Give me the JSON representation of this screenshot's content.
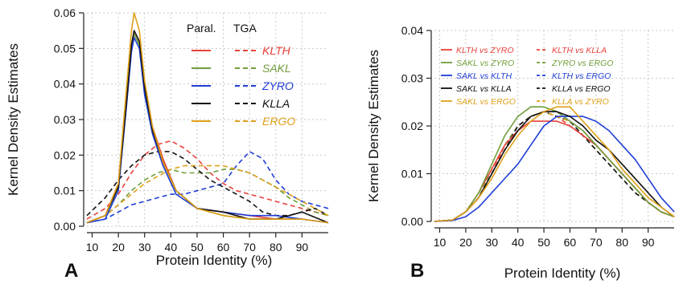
{
  "chart_data": [
    {
      "type": "line",
      "panel_label": "A",
      "xlabel": "Protein Identity (%)",
      "ylabel": "Kernel Density Estimates",
      "xlim": [
        8,
        100
      ],
      "ylim": [
        0,
        0.06
      ],
      "x_ticks": [
        "10",
        "20",
        "30",
        "40",
        "50",
        "60",
        "70",
        "80",
        "90"
      ],
      "y_ticks": [
        "0.00",
        "0.01",
        "0.02",
        "0.03",
        "0.04",
        "0.05",
        "0.06"
      ],
      "grid": true,
      "legend_position": "top-right",
      "legend_headers": [
        "Paral.",
        "TGA"
      ],
      "series": [
        {
          "name": "KLTH",
          "color": "#e8413a",
          "dash": "solid",
          "x": [
            8,
            15,
            20,
            23,
            25,
            26,
            28,
            30,
            33,
            37,
            42,
            50,
            60,
            70,
            80,
            90,
            100
          ],
          "y": [
            0.001,
            0.003,
            0.012,
            0.035,
            0.05,
            0.055,
            0.052,
            0.039,
            0.028,
            0.019,
            0.01,
            0.005,
            0.004,
            0.003,
            0.002,
            0.002,
            0.001
          ]
        },
        {
          "name": "SAKL",
          "color": "#6f9e3a",
          "dash": "solid",
          "x": [
            8,
            15,
            20,
            23,
            25,
            26,
            28,
            30,
            33,
            37,
            42,
            50,
            60,
            70,
            80,
            90,
            100
          ],
          "y": [
            0.001,
            0.003,
            0.011,
            0.034,
            0.05,
            0.054,
            0.051,
            0.038,
            0.027,
            0.018,
            0.01,
            0.005,
            0.003,
            0.002,
            0.002,
            0.002,
            0.001
          ]
        },
        {
          "name": "ZYRO",
          "color": "#1f3ed6",
          "dash": "solid",
          "x": [
            8,
            15,
            20,
            23,
            25,
            26,
            28,
            30,
            33,
            37,
            42,
            50,
            60,
            70,
            80,
            90,
            100
          ],
          "y": [
            0.001,
            0.002,
            0.01,
            0.033,
            0.049,
            0.053,
            0.05,
            0.037,
            0.026,
            0.017,
            0.009,
            0.005,
            0.004,
            0.003,
            0.003,
            0.002,
            0.001
          ]
        },
        {
          "name": "KLLA",
          "color": "#111111",
          "dash": "solid",
          "x": [
            8,
            15,
            20,
            23,
            25,
            26,
            28,
            30,
            33,
            37,
            42,
            50,
            60,
            70,
            80,
            90,
            100
          ],
          "y": [
            0.001,
            0.003,
            0.011,
            0.034,
            0.051,
            0.055,
            0.052,
            0.039,
            0.027,
            0.018,
            0.01,
            0.005,
            0.004,
            0.002,
            0.002,
            0.004,
            0.001
          ]
        },
        {
          "name": "ERGO",
          "color": "#e0a01a",
          "dash": "solid",
          "x": [
            8,
            15,
            20,
            23,
            25,
            26,
            28,
            30,
            33,
            37,
            42,
            50,
            60,
            70,
            80,
            90,
            100
          ],
          "y": [
            0.001,
            0.003,
            0.012,
            0.038,
            0.055,
            0.06,
            0.055,
            0.041,
            0.028,
            0.018,
            0.01,
            0.005,
            0.003,
            0.002,
            0.002,
            0.002,
            0.001
          ]
        },
        {
          "name": "KLTH",
          "color": "#e8413a",
          "dash": "dashed",
          "x": [
            8,
            15,
            20,
            25,
            30,
            35,
            40,
            45,
            50,
            55,
            60,
            65,
            70,
            75,
            80,
            85,
            90,
            95,
            100
          ],
          "y": [
            0.002,
            0.005,
            0.009,
            0.015,
            0.02,
            0.023,
            0.024,
            0.022,
            0.019,
            0.015,
            0.012,
            0.01,
            0.009,
            0.008,
            0.007,
            0.006,
            0.005,
            0.004,
            0.003
          ]
        },
        {
          "name": "SAKL",
          "color": "#6f9e3a",
          "dash": "dashed",
          "x": [
            8,
            15,
            20,
            25,
            30,
            35,
            40,
            45,
            50,
            55,
            60,
            65,
            70,
            75,
            80,
            85,
            90,
            95,
            100
          ],
          "y": [
            0.001,
            0.003,
            0.006,
            0.01,
            0.013,
            0.015,
            0.016,
            0.015,
            0.015,
            0.015,
            0.016,
            0.016,
            0.015,
            0.013,
            0.011,
            0.008,
            0.006,
            0.004,
            0.003
          ]
        },
        {
          "name": "ZYRO",
          "color": "#1f3ed6",
          "dash": "dashed",
          "x": [
            8,
            15,
            20,
            25,
            30,
            35,
            40,
            45,
            50,
            55,
            60,
            65,
            70,
            75,
            80,
            85,
            90,
            95,
            100
          ],
          "y": [
            0.001,
            0.002,
            0.004,
            0.006,
            0.007,
            0.008,
            0.009,
            0.009,
            0.01,
            0.011,
            0.012,
            0.017,
            0.021,
            0.019,
            0.013,
            0.009,
            0.007,
            0.006,
            0.005
          ]
        },
        {
          "name": "KLLA",
          "color": "#111111",
          "dash": "dashed",
          "x": [
            8,
            15,
            20,
            25,
            30,
            35,
            40,
            45,
            50,
            55,
            60,
            65,
            70,
            75,
            80,
            85,
            90,
            95,
            100
          ],
          "y": [
            0.003,
            0.008,
            0.013,
            0.017,
            0.02,
            0.021,
            0.021,
            0.019,
            0.016,
            0.013,
            0.011,
            0.009,
            0.007,
            0.004,
            0.003,
            0.003,
            0.004,
            0.005,
            0.003
          ]
        },
        {
          "name": "ERGO",
          "color": "#e0a01a",
          "dash": "dashed",
          "x": [
            8,
            15,
            20,
            25,
            30,
            35,
            40,
            45,
            50,
            55,
            60,
            65,
            70,
            75,
            80,
            85,
            90,
            95,
            100
          ],
          "y": [
            0.001,
            0.003,
            0.006,
            0.009,
            0.012,
            0.014,
            0.016,
            0.017,
            0.017,
            0.017,
            0.017,
            0.016,
            0.015,
            0.013,
            0.011,
            0.009,
            0.007,
            0.005,
            0.003
          ]
        }
      ]
    },
    {
      "type": "line",
      "panel_label": "B",
      "xlabel": "Protein Identity (%)",
      "ylabel": "Kernel Density Estimates",
      "xlim": [
        8,
        100
      ],
      "ylim": [
        0,
        0.04
      ],
      "x_ticks": [
        "10",
        "20",
        "30",
        "40",
        "50",
        "60",
        "70",
        "80",
        "90"
      ],
      "y_ticks": [
        "0.00",
        "0.01",
        "0.02",
        "0.03",
        "0.04"
      ],
      "grid": true,
      "legend_position": "top",
      "series": [
        {
          "name": "KLTH vs ZYRO",
          "color": "#e8413a",
          "dash": "solid",
          "x": [
            8,
            15,
            20,
            25,
            30,
            35,
            40,
            45,
            50,
            55,
            60,
            65,
            70,
            75,
            80,
            85,
            90,
            95,
            100
          ],
          "y": [
            0,
            0.0003,
            0.002,
            0.006,
            0.011,
            0.016,
            0.019,
            0.021,
            0.021,
            0.021,
            0.02,
            0.018,
            0.016,
            0.013,
            0.01,
            0.007,
            0.004,
            0.002,
            0.001
          ]
        },
        {
          "name": "SAKL vs ZYRO",
          "color": "#6f9e3a",
          "dash": "solid",
          "x": [
            8,
            15,
            20,
            25,
            30,
            35,
            40,
            45,
            50,
            55,
            60,
            65,
            70,
            75,
            80,
            85,
            90,
            95,
            100
          ],
          "y": [
            0,
            0.0003,
            0.002,
            0.006,
            0.012,
            0.018,
            0.022,
            0.024,
            0.024,
            0.023,
            0.021,
            0.019,
            0.016,
            0.013,
            0.01,
            0.007,
            0.004,
            0.002,
            0.001
          ]
        },
        {
          "name": "SAKL vs KLTH",
          "color": "#1f3ed6",
          "dash": "solid",
          "x": [
            8,
            15,
            20,
            25,
            30,
            35,
            40,
            45,
            50,
            55,
            60,
            65,
            70,
            75,
            80,
            85,
            90,
            95,
            100
          ],
          "y": [
            0,
            0.0002,
            0.001,
            0.003,
            0.006,
            0.009,
            0.012,
            0.016,
            0.02,
            0.022,
            0.022,
            0.022,
            0.021,
            0.019,
            0.016,
            0.013,
            0.009,
            0.005,
            0.002
          ]
        },
        {
          "name": "SAKL vs KLLA",
          "color": "#111111",
          "dash": "solid",
          "x": [
            8,
            15,
            20,
            25,
            30,
            35,
            40,
            45,
            50,
            55,
            60,
            65,
            70,
            75,
            80,
            85,
            90,
            95,
            100
          ],
          "y": [
            0,
            0.0003,
            0.002,
            0.005,
            0.01,
            0.015,
            0.019,
            0.022,
            0.023,
            0.023,
            0.022,
            0.02,
            0.017,
            0.015,
            0.012,
            0.009,
            0.006,
            0.003,
            0.001
          ]
        },
        {
          "name": "SAKL vs ERGO",
          "color": "#e0a01a",
          "dash": "solid",
          "x": [
            8,
            15,
            20,
            25,
            30,
            35,
            40,
            45,
            50,
            55,
            60,
            65,
            70,
            75,
            80,
            85,
            90,
            95,
            100
          ],
          "y": [
            0,
            0.0003,
            0.002,
            0.005,
            0.009,
            0.014,
            0.018,
            0.021,
            0.023,
            0.024,
            0.024,
            0.021,
            0.018,
            0.015,
            0.011,
            0.008,
            0.005,
            0.003,
            0.001
          ]
        },
        {
          "name": "KLTH vs KLLA",
          "color": "#e8413a",
          "dash": "dashed",
          "x": [
            8,
            15,
            20,
            25,
            30,
            35,
            40,
            45,
            50,
            55,
            60,
            65,
            70,
            75,
            80,
            85,
            90,
            95,
            100
          ],
          "y": [
            0,
            0.0003,
            0.002,
            0.005,
            0.01,
            0.016,
            0.02,
            0.022,
            0.023,
            0.022,
            0.02,
            0.018,
            0.016,
            0.013,
            0.01,
            0.007,
            0.004,
            0.002,
            0.001
          ]
        },
        {
          "name": "ZYRO vs ERGO",
          "color": "#6f9e3a",
          "dash": "dashed",
          "x": [
            8,
            15,
            20,
            25,
            30,
            35,
            40,
            45,
            50,
            55,
            60,
            65,
            70,
            75,
            80,
            85,
            90,
            95,
            100
          ],
          "y": [
            0,
            0.0003,
            0.002,
            0.005,
            0.011,
            0.016,
            0.02,
            0.022,
            0.023,
            0.022,
            0.021,
            0.018,
            0.015,
            0.012,
            0.009,
            0.006,
            0.004,
            0.002,
            0.001
          ]
        },
        {
          "name": "KLTH vs ERGO",
          "color": "#1f3ed6",
          "dash": "dashed",
          "x": [
            8,
            15,
            20,
            25,
            30,
            35,
            40,
            45,
            50,
            55,
            60,
            65,
            70,
            75,
            80,
            85,
            90,
            95,
            100
          ],
          "y": [
            0,
            0.0003,
            0.002,
            0.005,
            0.01,
            0.015,
            0.019,
            0.022,
            0.023,
            0.023,
            0.021,
            0.019,
            0.016,
            0.013,
            0.01,
            0.007,
            0.004,
            0.002,
            0.001
          ]
        },
        {
          "name": "KLLA vs ERGO",
          "color": "#111111",
          "dash": "dashed",
          "x": [
            8,
            15,
            20,
            25,
            30,
            35,
            40,
            45,
            50,
            55,
            60,
            65,
            70,
            75,
            80,
            85,
            90,
            95,
            100
          ],
          "y": [
            0,
            0.0003,
            0.002,
            0.005,
            0.01,
            0.015,
            0.02,
            0.022,
            0.023,
            0.022,
            0.021,
            0.018,
            0.015,
            0.012,
            0.009,
            0.006,
            0.004,
            0.002,
            0.001
          ]
        },
        {
          "name": "KLLA vs ZYRO",
          "color": "#e0a01a",
          "dash": "dashed",
          "x": [
            8,
            15,
            20,
            25,
            30,
            35,
            40,
            45,
            50,
            55,
            60,
            65,
            70,
            75,
            80,
            85,
            90,
            95,
            100
          ],
          "y": [
            0,
            0.0003,
            0.002,
            0.005,
            0.01,
            0.015,
            0.019,
            0.022,
            0.023,
            0.022,
            0.021,
            0.019,
            0.016,
            0.013,
            0.01,
            0.007,
            0.004,
            0.002,
            0.001
          ]
        }
      ]
    }
  ]
}
